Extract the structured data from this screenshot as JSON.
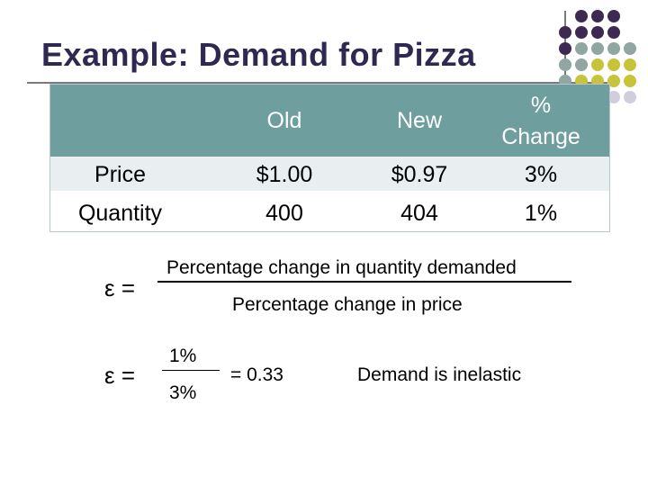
{
  "title": "Example:  Demand for Pizza",
  "decor": {
    "dot_colors": [
      "#3d2a52",
      "#8fa6a3",
      "#c8c43a",
      "#d0cedc"
    ]
  },
  "table": {
    "headers": [
      "",
      "Old",
      "New",
      "%\nChange"
    ],
    "header_line1_change": "%",
    "header_line2_change": "Change",
    "rows": [
      {
        "label": "Price",
        "old": "$1.00",
        "new": "$0.97",
        "change": "3%"
      },
      {
        "label": "Quantity",
        "old": "400",
        "new": "404",
        "change": "1%"
      }
    ]
  },
  "formula1": {
    "symbol": "ε =",
    "numerator": "Percentage change in quantity demanded",
    "denominator": "Percentage change in price"
  },
  "formula2": {
    "symbol": "ε =",
    "numerator": "1%",
    "denominator": "3%",
    "result": "= 0.33",
    "conclusion": "Demand is inelastic"
  }
}
